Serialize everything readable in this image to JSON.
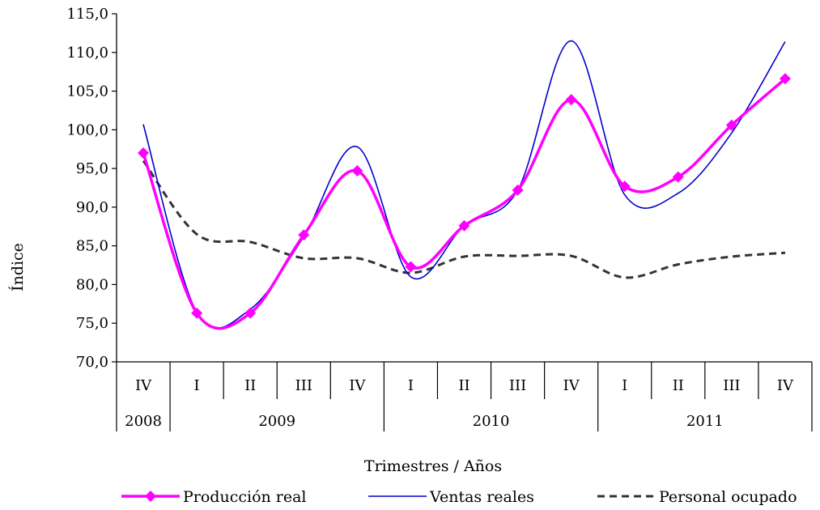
{
  "chart_data": {
    "type": "line",
    "title": "",
    "ylabel": "Índice",
    "xlabel": "Trimestres / Años",
    "ylim": [
      70,
      115
    ],
    "y_step": 5,
    "y_ticks": [
      "70,0",
      "75,0",
      "80,0",
      "85,0",
      "90,0",
      "95,0",
      "100,0",
      "105,0",
      "110,0",
      "115,0"
    ],
    "categories": [
      "IV",
      "I",
      "II",
      "III",
      "IV",
      "I",
      "II",
      "III",
      "IV",
      "I",
      "II",
      "III",
      "IV"
    ],
    "year_groups": [
      {
        "label": "2008",
        "start": 0,
        "count": 1
      },
      {
        "label": "2009",
        "start": 1,
        "count": 4
      },
      {
        "label": "2010",
        "start": 5,
        "count": 4
      },
      {
        "label": "2011",
        "start": 9,
        "count": 4
      }
    ],
    "series": [
      {
        "name": "Producción real",
        "color": "#ff00ff",
        "style": "solid-markers",
        "values": [
          97.0,
          76.3,
          76.3,
          86.4,
          94.7,
          82.3,
          87.6,
          92.2,
          103.9,
          92.7,
          93.9,
          100.6,
          106.6
        ]
      },
      {
        "name": "Ventas reales",
        "color": "#0000cc",
        "style": "solid-thin",
        "values": [
          100.7,
          76.4,
          76.8,
          86.2,
          97.8,
          81.0,
          87.6,
          92.2,
          111.5,
          91.6,
          91.8,
          99.6,
          111.4
        ]
      },
      {
        "name": "Personal ocupado",
        "color": "#333333",
        "style": "dashed",
        "values": [
          96.0,
          86.5,
          85.5,
          83.4,
          83.4,
          81.5,
          83.6,
          83.7,
          83.7,
          80.9,
          82.6,
          83.6,
          84.1
        ]
      }
    ],
    "grid": false,
    "legend_position": "bottom"
  }
}
